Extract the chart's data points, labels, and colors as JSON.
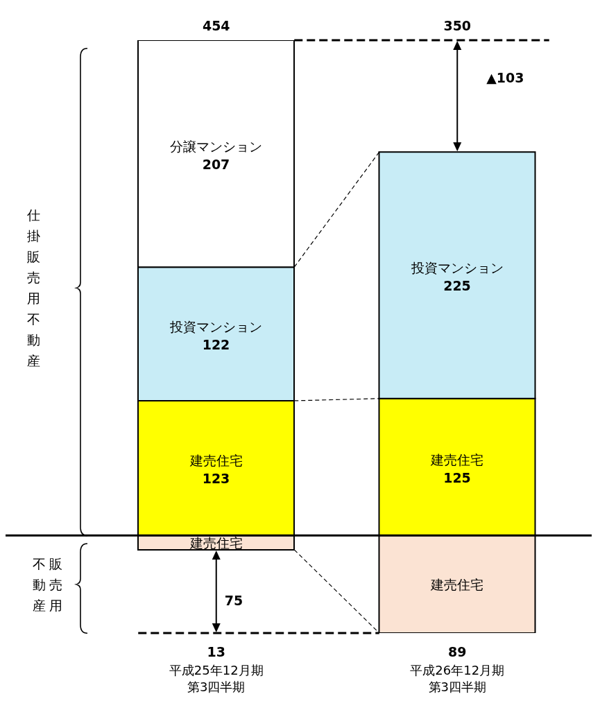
{
  "chart_data": {
    "type": "bar",
    "stacked": true,
    "categories": [
      "平成25年12月期第3四半期",
      "平成26年12月期第3四半期"
    ],
    "series": [
      {
        "name": "建売住宅",
        "color": "#ffff00",
        "values": [
          123,
          125
        ],
        "value_labels": [
          "123",
          "125"
        ]
      },
      {
        "name": "投資マンション",
        "color": "#c8ecf6",
        "values": [
          122,
          225
        ],
        "value_labels": [
          "122",
          "225"
        ]
      },
      {
        "name": "分譲マンション",
        "color": "#ffffff",
        "values": [
          207,
          null
        ],
        "value_labels": [
          "207",
          null
        ]
      },
      {
        "name": "建売住宅",
        "color": "#fbe3d3",
        "values": [
          -13,
          -89
        ],
        "value_labels": [
          null,
          null
        ]
      }
    ],
    "annotations": [
      {
        "text": "454",
        "x": "平成25年12月期第3四半期",
        "y": 452
      },
      {
        "text": "350",
        "x": "平成26年12月期第3四半期",
        "y": 350
      },
      {
        "text": "13",
        "x": "平成25年12月期第3四半期",
        "y": -13
      },
      {
        "text": "89",
        "x": "平成26年12月期第3四半期",
        "y": -89
      },
      "▲103",
      "75",
      "仕掛販売用不動産",
      "販売用不動産"
    ]
  }
}
